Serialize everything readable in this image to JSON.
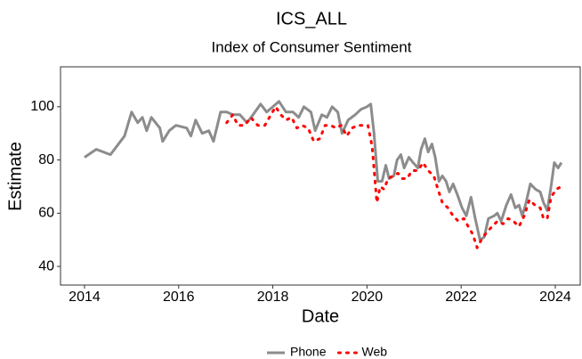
{
  "chart_data": {
    "type": "line",
    "title": "ICS_ALL",
    "subtitle": "Index of Consumer Sentiment",
    "x_label": "Date",
    "y_label": "Estimate",
    "xlim": [
      2013.49,
      2024.53
    ],
    "xticks": [
      2014,
      2016,
      2018,
      2020,
      2022,
      2024
    ],
    "ylim": [
      33,
      115
    ],
    "yticks": [
      40,
      60,
      80,
      100
    ],
    "grid": false,
    "legend": "bottom",
    "series": [
      {
        "name": "Phone",
        "color": "#8c8c8c",
        "dash": false,
        "x": [
          2014.0,
          2014.25,
          2014.55,
          2014.85,
          2015.0,
          2015.13,
          2015.23,
          2015.32,
          2015.42,
          2015.6,
          2015.66,
          2015.8,
          2015.94,
          2016.17,
          2016.26,
          2016.36,
          2016.5,
          2016.64,
          2016.74,
          2016.89,
          2017.02,
          2017.15,
          2017.3,
          2017.45,
          2017.58,
          2017.74,
          2017.87,
          2018.0,
          2018.13,
          2018.28,
          2018.43,
          2018.55,
          2018.66,
          2018.81,
          2018.9,
          2019.04,
          2019.15,
          2019.26,
          2019.38,
          2019.47,
          2019.6,
          2019.75,
          2019.87,
          2020.0,
          2020.08,
          2020.15,
          2020.23,
          2020.32,
          2020.4,
          2020.47,
          2020.57,
          2020.64,
          2020.72,
          2020.79,
          2020.89,
          2020.98,
          2021.08,
          2021.15,
          2021.23,
          2021.3,
          2021.38,
          2021.45,
          2021.53,
          2021.6,
          2021.68,
          2021.75,
          2021.83,
          2021.92,
          2022.02,
          2022.11,
          2022.21,
          2022.3,
          2022.4,
          2022.49,
          2022.58,
          2022.7,
          2022.77,
          2022.85,
          2022.96,
          2023.06,
          2023.15,
          2023.23,
          2023.3,
          2023.38,
          2023.47,
          2023.58,
          2023.68,
          2023.75,
          2023.83,
          2023.91,
          2023.98,
          2024.06,
          2024.13
        ],
        "values": [
          81,
          84,
          82,
          89,
          98,
          94,
          96,
          91,
          96,
          92,
          87,
          91,
          93,
          92,
          89,
          95,
          90,
          91,
          87,
          98,
          98,
          97,
          97,
          94,
          97,
          101,
          98,
          100,
          102,
          98,
          98,
          96,
          100,
          98,
          91,
          97,
          96,
          100,
          98,
          90,
          95,
          97,
          99,
          100,
          101,
          90,
          72,
          72,
          78,
          73,
          74,
          80,
          82,
          77,
          81,
          79,
          77,
          84,
          88,
          83,
          86,
          81,
          72,
          74,
          72,
          68,
          71,
          67,
          62,
          59,
          66,
          58,
          50,
          51,
          58,
          59,
          60,
          57,
          63,
          67,
          62,
          63,
          59,
          64,
          71,
          69,
          68,
          64,
          61,
          70,
          79,
          77,
          79
        ]
      },
      {
        "name": "Web",
        "color": "#ff0000",
        "dash": true,
        "x": [
          2017.02,
          2017.15,
          2017.26,
          2017.4,
          2017.53,
          2017.68,
          2017.83,
          2017.96,
          2018.06,
          2018.17,
          2018.28,
          2018.4,
          2018.51,
          2018.62,
          2018.75,
          2018.87,
          2019.0,
          2019.11,
          2019.23,
          2019.34,
          2019.45,
          2019.57,
          2019.68,
          2019.81,
          2019.91,
          2020.02,
          2020.11,
          2020.21,
          2020.28,
          2020.36,
          2020.45,
          2020.55,
          2020.66,
          2020.75,
          2020.85,
          2020.96,
          2021.08,
          2021.19,
          2021.3,
          2021.42,
          2021.49,
          2021.6,
          2021.72,
          2021.83,
          2021.94,
          2022.06,
          2022.15,
          2022.25,
          2022.34,
          2022.43,
          2022.55,
          2022.66,
          2022.77,
          2022.89,
          2023.0,
          2023.11,
          2023.23,
          2023.34,
          2023.45,
          2023.57,
          2023.68,
          2023.75,
          2023.83,
          2023.91,
          2024.02,
          2024.13
        ],
        "values": [
          94,
          97,
          93,
          93,
          96,
          93,
          93,
          97,
          100,
          97,
          95,
          96,
          92,
          93,
          92,
          87,
          88,
          93,
          93,
          92,
          93,
          89,
          92,
          93,
          93,
          93,
          85,
          64,
          70,
          69,
          73,
          74,
          75,
          73,
          73,
          76,
          76,
          79,
          76,
          74,
          70,
          64,
          62,
          59,
          57,
          58,
          55,
          52,
          47,
          50,
          53,
          55,
          57,
          56,
          58,
          57,
          55,
          59,
          65,
          63,
          62,
          58,
          58,
          66,
          69,
          70
        ]
      }
    ]
  }
}
